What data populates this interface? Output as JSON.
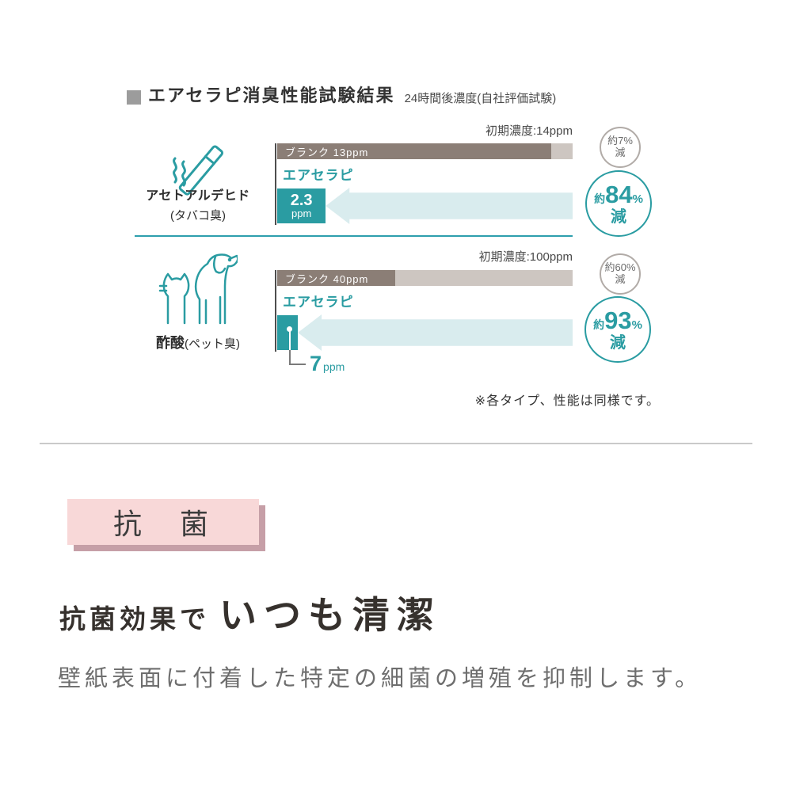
{
  "header": {
    "title": "エアセラピ消臭性能試験結果",
    "subtitle": "24時間後濃度(自社評価試験)"
  },
  "chart_data": {
    "type": "bar",
    "orientation": "horizontal",
    "title": "エアセラピ消臭性能試験結果",
    "subtitle": "24時間後濃度(自社評価試験)",
    "unit": "ppm",
    "rows": [
      {
        "substance": "アセトアルデヒド",
        "odor_note": "(タバコ臭)",
        "icon": "cigarette-icon",
        "initial_label": "初期濃度:14ppm",
        "initial_ppm": 14,
        "blank": {
          "label": "ブランク 13ppm",
          "ppm": 13,
          "reduction_line1": "約7%",
          "reduction_line2": "減"
        },
        "product": {
          "label": "エアセラピ",
          "value": "2.3",
          "unit": "ppm",
          "ppm": 2.3,
          "reduction_about": "約",
          "reduction_number": "84",
          "reduction_percent": "%",
          "reduction_suffix": "減"
        }
      },
      {
        "substance": "酢酸",
        "odor_note": "(ペット臭)",
        "icon": "cat-dog-icon",
        "initial_label": "初期濃度:100ppm",
        "initial_ppm": 100,
        "blank": {
          "label": "ブランク 40ppm",
          "ppm": 40,
          "reduction_line1": "約60%",
          "reduction_line2": "減"
        },
        "product": {
          "label": "エアセラピ",
          "value": "7",
          "unit": "ppm",
          "ppm": 7,
          "reduction_about": "約",
          "reduction_number": "93",
          "reduction_percent": "%",
          "reduction_suffix": "減"
        }
      }
    ],
    "note": "※各タイプ、性能は同様です。"
  },
  "antibacterial": {
    "badge_label": "抗　菌",
    "heading_small": "抗菌効果で",
    "heading_large": "いつも清潔",
    "body": "壁紙表面に付着した特定の細菌の増殖を抑制します。"
  },
  "colors": {
    "teal": "#2a9ca2",
    "teal_light": "#d9ecee",
    "teal_rule": "#2e9fad",
    "bar_brown": "#8b7e76",
    "bar_brown_light": "#cdc6c1",
    "circle_gray_border": "#b1aba7",
    "badge_pink": "#f8d8d8",
    "badge_pink_shadow": "#c69fa7"
  }
}
